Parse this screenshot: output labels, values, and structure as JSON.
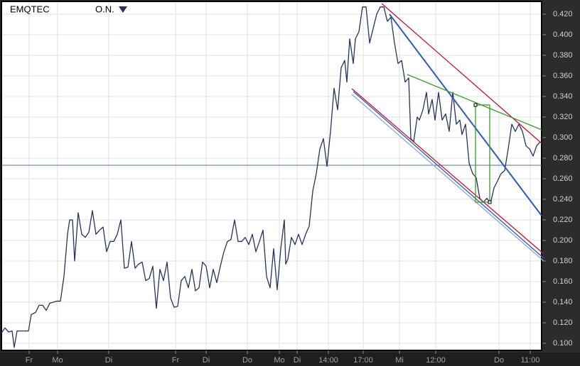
{
  "chart_data": {
    "type": "line",
    "title": "EMQTEC",
    "menu": "O.N.",
    "xlim": [
      0,
      152.4
    ],
    "ylim": [
      0.0945,
      0.431
    ],
    "xticks": [
      {
        "value": 8.2,
        "label": "Fr"
      },
      {
        "value": 16.2,
        "label": "Mo"
      },
      {
        "value": 30.6,
        "label": "Di"
      },
      {
        "value": 49.4,
        "label": "Fr"
      },
      {
        "value": 58,
        "label": "Di"
      },
      {
        "value": 69.6,
        "label": "Do"
      },
      {
        "value": 78.6,
        "label": "Mo"
      },
      {
        "value": 83.6,
        "label": "Di"
      },
      {
        "value": 92.4,
        "label": "14:00"
      },
      {
        "value": 102.2,
        "label": "17:00"
      },
      {
        "value": 112.4,
        "label": "Mi"
      },
      {
        "value": 122.6,
        "label": "12:00"
      },
      {
        "value": 140.4,
        "label": "Do"
      },
      {
        "value": 149.2,
        "label": "11:00"
      }
    ],
    "yticks": [
      {
        "value": 0.1,
        "label": "0.100"
      },
      {
        "value": 0.12,
        "label": "0.120"
      },
      {
        "value": 0.14,
        "label": "0.140"
      },
      {
        "value": 0.16,
        "label": "0.160"
      },
      {
        "value": 0.18,
        "label": "0.180"
      },
      {
        "value": 0.2,
        "label": "0.200"
      },
      {
        "value": 0.22,
        "label": "0.220"
      },
      {
        "value": 0.24,
        "label": "0.240"
      },
      {
        "value": 0.26,
        "label": "0.260"
      },
      {
        "value": 0.28,
        "label": "0.280"
      },
      {
        "value": 0.3,
        "label": "0.300"
      },
      {
        "value": 0.32,
        "label": "0.320"
      },
      {
        "value": 0.34,
        "label": "0.340"
      },
      {
        "value": 0.36,
        "label": "0.360"
      },
      {
        "value": 0.38,
        "label": "0.380"
      },
      {
        "value": 0.4,
        "label": "0.400"
      },
      {
        "value": 0.42,
        "label": "0.420"
      }
    ],
    "grid": true,
    "color": "#26335e",
    "x": [
      0.4,
      1.4,
      2.4,
      3.4,
      4,
      4.8,
      6,
      8,
      8.8,
      10,
      11,
      12,
      13,
      14,
      16,
      17,
      18,
      19,
      19.6,
      20.4,
      21,
      22,
      23,
      24,
      25,
      26,
      27,
      28,
      29,
      30,
      31,
      32,
      33,
      34,
      35,
      36,
      37,
      38,
      39,
      40,
      41,
      42,
      43,
      44,
      45,
      46,
      47,
      48,
      49,
      50,
      51,
      52,
      53,
      54,
      55,
      56,
      57,
      58,
      59,
      60,
      61,
      62,
      63,
      64,
      65,
      66,
      67,
      68,
      69,
      70,
      71,
      72,
      73,
      74,
      75,
      76,
      77,
      78,
      79,
      80,
      80.4,
      81,
      82,
      83,
      84,
      85,
      86,
      87,
      88,
      89,
      90,
      91,
      92,
      93,
      94,
      95,
      96,
      97,
      97.6,
      98.4,
      99.4,
      100,
      101,
      102,
      103,
      104,
      105,
      106,
      107,
      108,
      109,
      110,
      111,
      112,
      113,
      114,
      115,
      115.6,
      116.4,
      117.4,
      118,
      119,
      120,
      120.6,
      121.6,
      122.4,
      123.4,
      124.4,
      125.4,
      126.4,
      127.4,
      128.4,
      129.4,
      130,
      131,
      132,
      133,
      134,
      135,
      136,
      137,
      138,
      139,
      140,
      141,
      142,
      143,
      144,
      145,
      146,
      147,
      148,
      149,
      150,
      151,
      152
    ],
    "values": [
      0.11,
      0.115,
      0.111,
      0.112,
      0.096,
      0.112,
      0.112,
      0.112,
      0.128,
      0.13,
      0.137,
      0.137,
      0.132,
      0.139,
      0.141,
      0.141,
      0.165,
      0.206,
      0.22,
      0.22,
      0.18,
      0.227,
      0.206,
      0.203,
      0.208,
      0.229,
      0.206,
      0.21,
      0.213,
      0.189,
      0.199,
      0.199,
      0.206,
      0.22,
      0.173,
      0.174,
      0.199,
      0.173,
      0.177,
      0.179,
      0.161,
      0.163,
      0.175,
      0.134,
      0.172,
      0.161,
      0.179,
      0.144,
      0.135,
      0.136,
      0.161,
      0.165,
      0.154,
      0.172,
      0.151,
      0.154,
      0.179,
      0.175,
      0.154,
      0.172,
      0.159,
      0.175,
      0.189,
      0.199,
      0.201,
      0.22,
      0.199,
      0.199,
      0.203,
      0.196,
      0.206,
      0.189,
      0.199,
      0.21,
      0.165,
      0.154,
      0.192,
      0.152,
      0.192,
      0.22,
      0.177,
      0.182,
      0.203,
      0.196,
      0.206,
      0.196,
      0.206,
      0.214,
      0.248,
      0.265,
      0.289,
      0.299,
      0.272,
      0.306,
      0.348,
      0.327,
      0.368,
      0.375,
      0.354,
      0.396,
      0.372,
      0.396,
      0.403,
      0.427,
      0.427,
      0.392,
      0.406,
      0.42,
      0.427,
      0.427,
      0.413,
      0.417,
      0.392,
      0.372,
      0.375,
      0.354,
      0.358,
      0.299,
      0.296,
      0.32,
      0.317,
      0.327,
      0.344,
      0.323,
      0.337,
      0.317,
      0.344,
      0.317,
      0.323,
      0.306,
      0.344,
      0.313,
      0.317,
      0.303,
      0.313,
      0.275,
      0.265,
      0.261,
      0.241,
      0.237,
      0.241,
      0.236,
      0.251,
      0.258,
      0.265,
      0.268,
      0.289,
      0.313,
      0.306,
      0.313,
      0.306,
      0.292,
      0.289,
      0.282,
      0.292,
      0.296
    ]
  }
}
